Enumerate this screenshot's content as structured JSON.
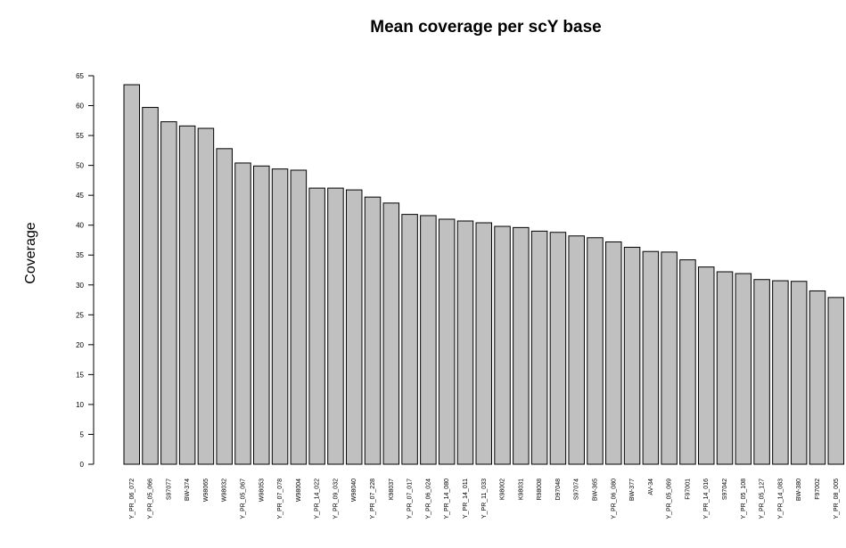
{
  "chart_data": {
    "type": "bar",
    "title": "Mean coverage per scY base",
    "xlabel": "",
    "ylabel": "Coverage",
    "ylim": [
      0,
      65
    ],
    "yticks": [
      0,
      5,
      10,
      15,
      20,
      25,
      30,
      35,
      40,
      45,
      50,
      55,
      60,
      65
    ],
    "grid": false,
    "bar_color": "#c0c0c0",
    "edge_color": "#000000",
    "categories": [
      "Y_PR_06_072",
      "Y_PR_05_066",
      "S97077",
      "BW-374",
      "W98065",
      "W98032",
      "Y_PR_05_067",
      "W98053",
      "Y_PR_07_078",
      "W98004",
      "Y_PR_14_022",
      "Y_PR_09_032",
      "W98040",
      "Y_PR_07_228",
      "K98037",
      "Y_PR_07_017",
      "Y_PR_06_024",
      "Y_PR_14_080",
      "Y_PR_14_011",
      "Y_PR_11_033",
      "K98002",
      "K98031",
      "R98008",
      "D97048",
      "S97074",
      "BW-365",
      "Y_PR_06_080",
      "BW-377",
      "AV-34",
      "Y_PR_05_069",
      "F97001",
      "Y_PR_14_016",
      "S97042",
      "Y_PR_05_108",
      "Y_PR_05_127",
      "Y_PR_14_083",
      "BW-380",
      "F97002",
      "Y_PR_08_005"
    ],
    "values": [
      63.5,
      59.7,
      57.3,
      56.6,
      56.2,
      52.8,
      50.4,
      49.9,
      49.4,
      49.2,
      46.2,
      46.2,
      45.9,
      44.7,
      43.7,
      41.8,
      41.6,
      41.0,
      40.7,
      40.4,
      39.8,
      39.6,
      39.0,
      38.8,
      38.2,
      37.9,
      37.2,
      36.3,
      35.6,
      35.5,
      34.2,
      33.0,
      32.2,
      31.9,
      30.9,
      30.7,
      30.6,
      29.0,
      27.9
    ]
  }
}
